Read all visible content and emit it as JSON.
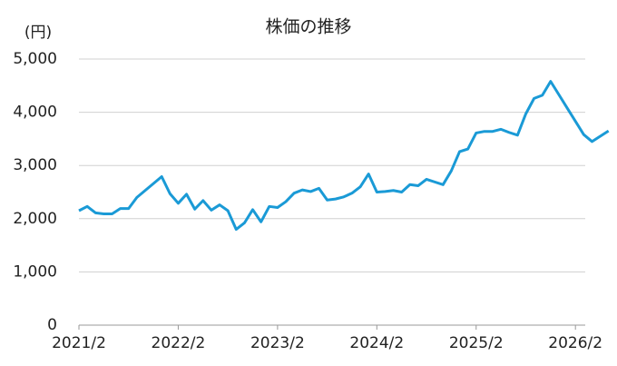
{
  "chart_data": {
    "type": "line",
    "title": "株価の推移",
    "y_label": "(円)",
    "categories": [
      "2021/2",
      null,
      null,
      null,
      null,
      null,
      null,
      null,
      null,
      null,
      null,
      null,
      "2022/2",
      null,
      null,
      null,
      null,
      null,
      null,
      null,
      null,
      null,
      null,
      null,
      "2023/2",
      null,
      null,
      null,
      null,
      null,
      null,
      null,
      null,
      null,
      null,
      null,
      "2024/2",
      null,
      null,
      null,
      null,
      null,
      null,
      null,
      null,
      null,
      null,
      null,
      "2025/2",
      null,
      null,
      null,
      null,
      null,
      null,
      null,
      null,
      null,
      null,
      null,
      "2026/2",
      null,
      null,
      null,
      null
    ],
    "series": [
      {
        "color": "#1a9ad6",
        "values": [
          2150,
          2230,
          2110,
          2090,
          2090,
          2190,
          2190,
          2400,
          2530,
          2660,
          2790,
          2470,
          2290,
          2460,
          2180,
          2340,
          2160,
          2260,
          2150,
          1800,
          1920,
          2170,
          1940,
          2230,
          2210,
          2320,
          2480,
          2540,
          2510,
          2570,
          2350,
          2370,
          2410,
          2480,
          2600,
          2840,
          2500,
          2510,
          2530,
          2500,
          2640,
          2620,
          2740,
          2690,
          2640,
          2900,
          3260,
          3310,
          3610,
          3640,
          3640,
          3680,
          3620,
          3570,
          3970,
          4260,
          4320,
          4580,
          4330,
          4080,
          3830,
          3580,
          3450,
          3550,
          3650
        ]
      }
    ],
    "ylim": [
      0,
      5000
    ],
    "yticks": [
      0,
      {
        "value": 1000,
        "label": "1,000"
      },
      {
        "value": 2000,
        "label": "2,000"
      },
      {
        "value": 3000,
        "label": "3,000"
      },
      {
        "value": 4000,
        "label": "4,000"
      },
      {
        "value": 5000,
        "label": "5,000"
      }
    ],
    "grid": true
  }
}
